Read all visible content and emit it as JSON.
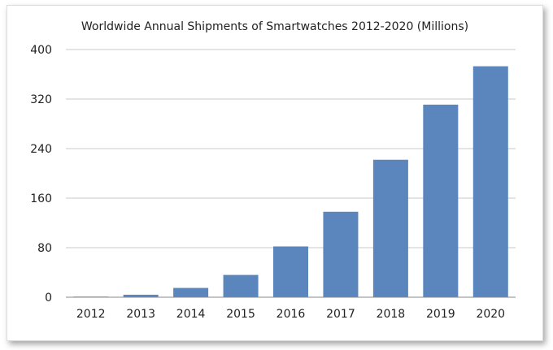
{
  "chart_data": {
    "type": "bar",
    "title": "Worldwide Annual Shipments of Smartwatches 2012-2020 (Millions)",
    "xlabel": "",
    "ylabel": "",
    "categories": [
      "2012",
      "2013",
      "2014",
      "2015",
      "2016",
      "2017",
      "2018",
      "2019",
      "2020"
    ],
    "values": [
      1,
      4,
      15,
      36,
      82,
      138,
      222,
      311,
      373
    ],
    "ylim": [
      0,
      400
    ],
    "yticks": [
      0,
      80,
      160,
      240,
      320,
      400
    ],
    "grid": true,
    "legend": "none",
    "bar_color": "#5b86bd"
  }
}
